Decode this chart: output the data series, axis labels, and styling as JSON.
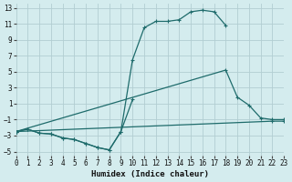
{
  "xlabel": "Humidex (Indice chaleur)",
  "bg_color": "#d4ecee",
  "grid_color": "#b2ced2",
  "line_color": "#1e6b6b",
  "xlim": [
    0,
    23
  ],
  "ylim": [
    -5.5,
    13.5
  ],
  "xticks": [
    0,
    1,
    2,
    3,
    4,
    5,
    6,
    7,
    8,
    9,
    10,
    11,
    12,
    13,
    14,
    15,
    16,
    17,
    18,
    19,
    20,
    21,
    22,
    23
  ],
  "yticks": [
    -5,
    -3,
    -1,
    1,
    3,
    5,
    7,
    9,
    11,
    13
  ],
  "curve1_x": [
    0,
    1,
    2,
    3,
    4,
    5,
    6,
    7,
    8,
    9,
    10,
    11,
    12,
    13,
    14,
    15,
    16,
    17,
    18
  ],
  "curve1_y": [
    -2.5,
    -2.2,
    -2.7,
    -2.8,
    -3.3,
    -3.5,
    -4.0,
    -4.5,
    -4.8,
    -2.5,
    6.5,
    10.5,
    11.3,
    11.3,
    11.5,
    12.5,
    12.7,
    12.5,
    10.8
  ],
  "curve2_x": [
    0,
    1,
    2,
    3,
    4,
    5,
    6,
    7,
    8,
    9,
    10
  ],
  "curve2_y": [
    -2.5,
    -2.2,
    -2.7,
    -2.8,
    -3.3,
    -3.5,
    -4.0,
    -4.5,
    -4.8,
    -2.5,
    1.5
  ],
  "curve3_x": [
    0,
    18,
    19,
    20,
    21,
    22,
    23
  ],
  "curve3_y": [
    -2.5,
    5.2,
    1.8,
    0.8,
    -0.8,
    -1.0,
    -1.0
  ],
  "curve4_x": [
    0,
    22,
    23
  ],
  "curve4_y": [
    -2.5,
    -1.2,
    -1.2
  ],
  "xlabel_fontsize": 6.5,
  "tick_fontsize": 5.5
}
